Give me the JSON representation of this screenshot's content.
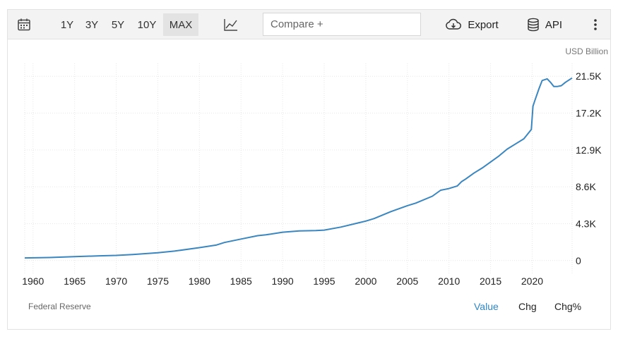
{
  "toolbar": {
    "ranges": [
      {
        "label": "1Y",
        "active": false
      },
      {
        "label": "3Y",
        "active": false
      },
      {
        "label": "5Y",
        "active": false
      },
      {
        "label": "10Y",
        "active": false
      },
      {
        "label": "MAX",
        "active": true
      }
    ],
    "compare_placeholder": "Compare +",
    "export_label": "Export",
    "api_label": "API"
  },
  "unit_label": "USD Billion",
  "source_label": "Federal Reserve",
  "view_tabs": [
    {
      "label": "Value",
      "active": true
    },
    {
      "label": "Chg",
      "active": false
    },
    {
      "label": "Chg%",
      "active": false
    }
  ],
  "colors": {
    "line": "#3a86c0",
    "active_tab": "#2e86c9",
    "grid": "#e6e6e6"
  },
  "chart_data": {
    "type": "line",
    "title": "",
    "xlabel": "",
    "ylabel": "USD Billion",
    "xlim": [
      1959,
      2024.8
    ],
    "ylim": [
      -1500,
      23000
    ],
    "y_ticks": [
      0,
      4300,
      8600,
      12900,
      17200,
      21500
    ],
    "y_tick_labels": [
      "0",
      "4.3K",
      "8.6K",
      "12.9K",
      "17.2K",
      "21.5K"
    ],
    "x_ticks": [
      1960,
      1965,
      1970,
      1975,
      1980,
      1985,
      1990,
      1995,
      2000,
      2005,
      2010,
      2015,
      2020
    ],
    "x_tick_labels": [
      "1960",
      "1965",
      "1970",
      "1975",
      "1980",
      "1985",
      "1990",
      "1995",
      "2000",
      "2005",
      "2010",
      "2015",
      "2020"
    ],
    "grid": true,
    "series": [
      {
        "x": [
          1959,
          1962,
          1965,
          1968,
          1970,
          1972,
          1975,
          1977,
          1980,
          1982,
          1983,
          1985,
          1987,
          1988,
          1990,
          1992,
          1994,
          1995,
          1997,
          2000,
          2001,
          2003,
          2005,
          2006,
          2008,
          2009,
          2009.5,
          2010,
          2011,
          2011.5,
          2012,
          2013,
          2014,
          2015,
          2016,
          2017,
          2018,
          2019,
          2019.9,
          2020.1,
          2020.3,
          2020.8,
          2021.2,
          2021.8,
          2022.2,
          2022.6,
          2023,
          2023.5,
          2024,
          2024.8
        ],
        "y": [
          300,
          350,
          450,
          550,
          600,
          700,
          900,
          1100,
          1500,
          1800,
          2100,
          2500,
          2900,
          3000,
          3300,
          3450,
          3500,
          3550,
          3900,
          4600,
          4900,
          5700,
          6400,
          6700,
          7500,
          8200,
          8300,
          8400,
          8700,
          9200,
          9500,
          10200,
          10800,
          11500,
          12200,
          13000,
          13600,
          14200,
          15300,
          18000,
          18600,
          20000,
          21000,
          21200,
          20800,
          20300,
          20300,
          20400,
          20800,
          21300
        ]
      }
    ]
  }
}
